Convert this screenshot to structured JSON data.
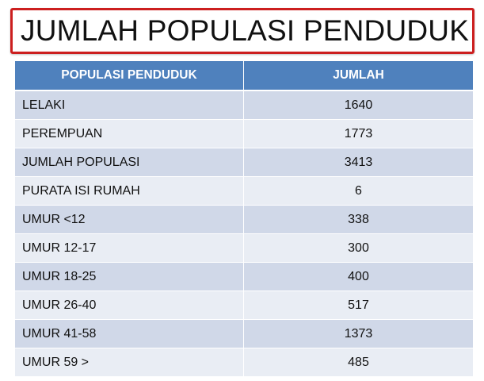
{
  "title": "JUMLAH POPULASI PENDUDUK",
  "table": {
    "headers": [
      "POPULASI PENDUDUK",
      "JUMLAH"
    ],
    "rows": [
      [
        "LELAKI",
        "1640"
      ],
      [
        "PEREMPUAN",
        "1773"
      ],
      [
        "JUMLAH POPULASI",
        "3413"
      ],
      [
        "PURATA ISI RUMAH",
        "6"
      ],
      [
        "UMUR <12",
        "338"
      ],
      [
        "UMUR 12-17",
        "300"
      ],
      [
        "UMUR 18-25",
        "400"
      ],
      [
        "UMUR 26-40",
        "517"
      ],
      [
        "UMUR 41-58",
        "1373"
      ],
      [
        "UMUR 59 >",
        "485"
      ]
    ]
  },
  "colors": {
    "title_border": "#cc1f1f",
    "header_bg": "#4f81bd",
    "row_dark": "#d0d8e8",
    "row_light": "#e9edf4"
  }
}
